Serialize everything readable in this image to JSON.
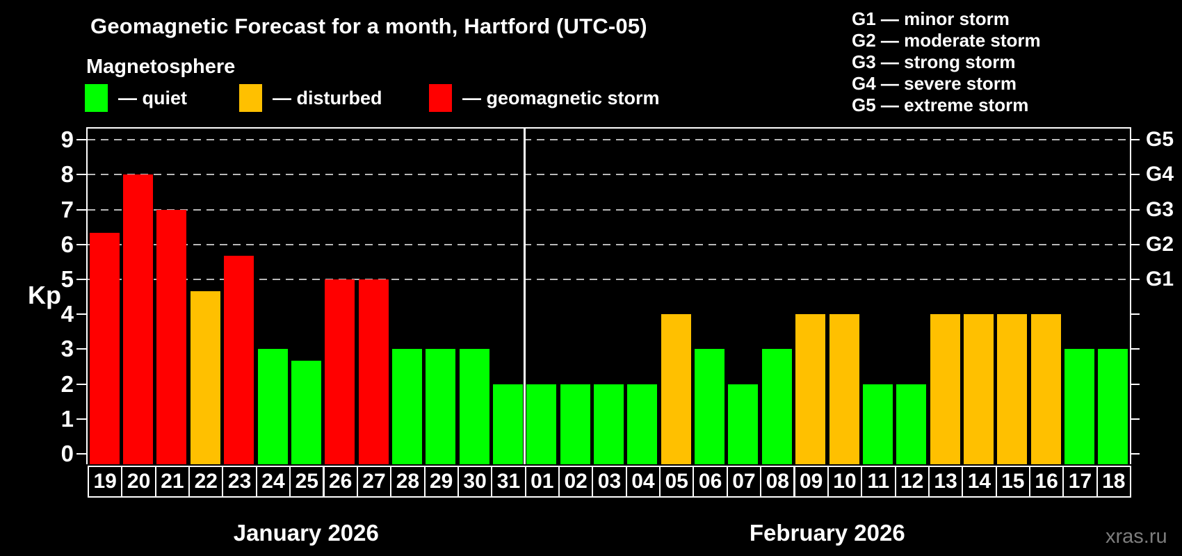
{
  "title": "Geomagnetic Forecast for a month, Hartford (UTC-05)",
  "subtitle": "Magnetosphere",
  "legend": {
    "items": [
      {
        "label": "— quiet",
        "status": "quiet"
      },
      {
        "label": "— disturbed",
        "status": "disturbed"
      },
      {
        "label": "— geomagnetic storm",
        "status": "storm"
      }
    ]
  },
  "right_legend": {
    "items": [
      "G1 — minor storm",
      "G2 — moderate storm",
      "G3 — strong storm",
      "G4 — severe storm",
      "G5 — extreme storm"
    ]
  },
  "watermark": "xras.ru",
  "chart_data": {
    "type": "bar",
    "title": "Geomagnetic Forecast for a month, Hartford (UTC-05)",
    "ylabel": "Kp",
    "ylim": [
      0,
      9.35
    ],
    "y_ticks": [
      0,
      1,
      2,
      3,
      4,
      5,
      6,
      7,
      8,
      9
    ],
    "grid": "dashed horizontal at Kp 5-9 only",
    "legend_position": "top",
    "g_levels": [
      {
        "label": "G1",
        "value": 5
      },
      {
        "label": "G2",
        "value": 6
      },
      {
        "label": "G3",
        "value": 7
      },
      {
        "label": "G4",
        "value": 8
      },
      {
        "label": "G5",
        "value": 9
      }
    ],
    "status_colors": {
      "quiet": "#00ff00",
      "disturbed": "#ffc000",
      "storm": "#ff0000"
    },
    "months": [
      {
        "label": "January 2026",
        "days": 13
      },
      {
        "label": "February 2026",
        "days": 18
      }
    ],
    "bars": [
      {
        "day": "19",
        "kp": 6.33,
        "status": "storm"
      },
      {
        "day": "20",
        "kp": 8,
        "status": "storm"
      },
      {
        "day": "21",
        "kp": 7,
        "status": "storm"
      },
      {
        "day": "22",
        "kp": 4.67,
        "status": "disturbed"
      },
      {
        "day": "23",
        "kp": 5.67,
        "status": "storm"
      },
      {
        "day": "24",
        "kp": 3,
        "status": "quiet"
      },
      {
        "day": "25",
        "kp": 2.67,
        "status": "quiet"
      },
      {
        "day": "26",
        "kp": 5,
        "status": "storm"
      },
      {
        "day": "27",
        "kp": 5,
        "status": "storm"
      },
      {
        "day": "28",
        "kp": 3,
        "status": "quiet"
      },
      {
        "day": "29",
        "kp": 3,
        "status": "quiet"
      },
      {
        "day": "30",
        "kp": 3,
        "status": "quiet"
      },
      {
        "day": "31",
        "kp": 2,
        "status": "quiet"
      },
      {
        "day": "01",
        "kp": 2,
        "status": "quiet"
      },
      {
        "day": "02",
        "kp": 2,
        "status": "quiet"
      },
      {
        "day": "03",
        "kp": 2,
        "status": "quiet"
      },
      {
        "day": "04",
        "kp": 2,
        "status": "quiet"
      },
      {
        "day": "05",
        "kp": 4,
        "status": "disturbed"
      },
      {
        "day": "06",
        "kp": 3,
        "status": "quiet"
      },
      {
        "day": "07",
        "kp": 2,
        "status": "quiet"
      },
      {
        "day": "08",
        "kp": 3,
        "status": "quiet"
      },
      {
        "day": "09",
        "kp": 4,
        "status": "disturbed"
      },
      {
        "day": "10",
        "kp": 4,
        "status": "disturbed"
      },
      {
        "day": "11",
        "kp": 2,
        "status": "quiet"
      },
      {
        "day": "12",
        "kp": 2,
        "status": "quiet"
      },
      {
        "day": "13",
        "kp": 4,
        "status": "disturbed"
      },
      {
        "day": "14",
        "kp": 4,
        "status": "disturbed"
      },
      {
        "day": "15",
        "kp": 4,
        "status": "disturbed"
      },
      {
        "day": "16",
        "kp": 4,
        "status": "disturbed"
      },
      {
        "day": "17",
        "kp": 3,
        "status": "quiet"
      },
      {
        "day": "18",
        "kp": 3,
        "status": "quiet"
      }
    ]
  }
}
